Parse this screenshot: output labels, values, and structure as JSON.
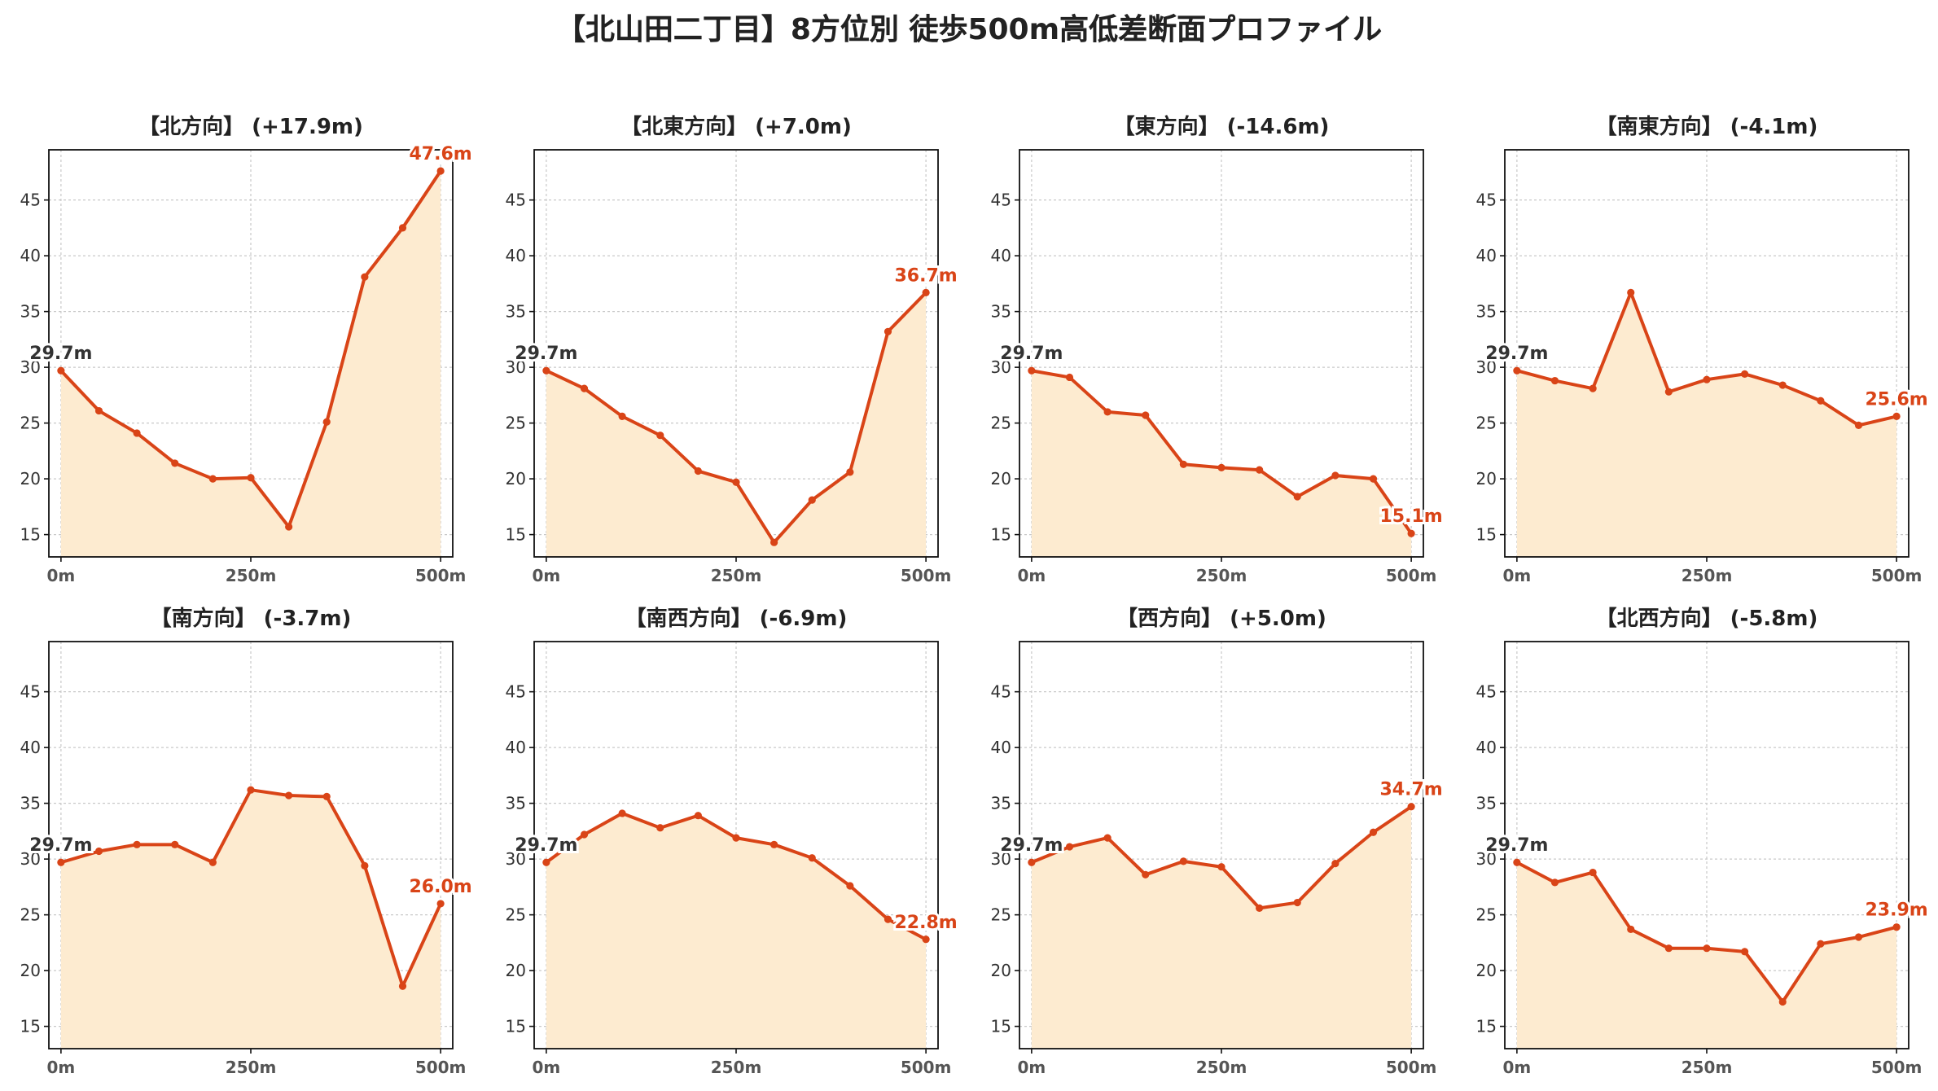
{
  "title": "【北山田二丁目】8方位別 徒歩500m高低差断面プロファイル",
  "colors": {
    "line": "#d94417",
    "fill": "#fdebd0",
    "start_label": "#333333",
    "end_label": "#d94417",
    "grid": "#c8c8c8"
  },
  "chart_data": [
    {
      "type": "area",
      "title": "【北方向】 (+17.9m)",
      "x": [
        0,
        50,
        100,
        150,
        200,
        250,
        300,
        350,
        400,
        450,
        500
      ],
      "values": [
        29.7,
        26.1,
        24.1,
        21.4,
        20.0,
        20.1,
        15.7,
        25.1,
        38.1,
        42.5,
        47.6
      ],
      "xticks": [
        "0m",
        "250m",
        "500m"
      ],
      "ylim": [
        13,
        49.5
      ],
      "yticks": [
        15,
        20,
        25,
        30,
        35,
        40,
        45
      ],
      "start_label": "29.7m",
      "end_label": "47.6m",
      "grid": true
    },
    {
      "type": "area",
      "title": "【北東方向】 (+7.0m)",
      "x": [
        0,
        50,
        100,
        150,
        200,
        250,
        300,
        350,
        400,
        450,
        500
      ],
      "values": [
        29.7,
        28.1,
        25.6,
        23.9,
        20.7,
        19.7,
        14.3,
        18.1,
        20.6,
        33.2,
        36.7
      ],
      "xticks": [
        "0m",
        "250m",
        "500m"
      ],
      "ylim": [
        13,
        49.5
      ],
      "yticks": [
        15,
        20,
        25,
        30,
        35,
        40,
        45
      ],
      "start_label": "29.7m",
      "end_label": "36.7m",
      "grid": true
    },
    {
      "type": "area",
      "title": "【東方向】 (-14.6m)",
      "x": [
        0,
        50,
        100,
        150,
        200,
        250,
        300,
        350,
        400,
        450,
        500
      ],
      "values": [
        29.7,
        29.1,
        26.0,
        25.7,
        21.3,
        21.0,
        20.8,
        18.4,
        20.3,
        20.0,
        15.1
      ],
      "xticks": [
        "0m",
        "250m",
        "500m"
      ],
      "ylim": [
        13,
        49.5
      ],
      "yticks": [
        15,
        20,
        25,
        30,
        35,
        40,
        45
      ],
      "start_label": "29.7m",
      "end_label": "15.1m",
      "grid": true
    },
    {
      "type": "area",
      "title": "【南東方向】 (-4.1m)",
      "x": [
        0,
        50,
        100,
        150,
        200,
        250,
        300,
        350,
        400,
        450,
        500
      ],
      "values": [
        29.7,
        28.8,
        28.1,
        36.7,
        27.8,
        28.9,
        29.4,
        28.4,
        27.0,
        24.8,
        25.6
      ],
      "xticks": [
        "0m",
        "250m",
        "500m"
      ],
      "ylim": [
        13,
        49.5
      ],
      "yticks": [
        15,
        20,
        25,
        30,
        35,
        40,
        45
      ],
      "start_label": "29.7m",
      "end_label": "25.6m",
      "grid": true
    },
    {
      "type": "area",
      "title": "【南方向】 (-3.7m)",
      "x": [
        0,
        50,
        100,
        150,
        200,
        250,
        300,
        350,
        400,
        450,
        500
      ],
      "values": [
        29.7,
        30.7,
        31.3,
        31.3,
        29.7,
        36.2,
        35.7,
        35.6,
        29.4,
        18.6,
        26.0
      ],
      "xticks": [
        "0m",
        "250m",
        "500m"
      ],
      "ylim": [
        13,
        49.5
      ],
      "yticks": [
        15,
        20,
        25,
        30,
        35,
        40,
        45
      ],
      "start_label": "29.7m",
      "end_label": "26.0m",
      "grid": true
    },
    {
      "type": "area",
      "title": "【南西方向】 (-6.9m)",
      "x": [
        0,
        50,
        100,
        150,
        200,
        250,
        300,
        350,
        400,
        450,
        500
      ],
      "values": [
        29.7,
        32.2,
        34.1,
        32.8,
        33.9,
        31.9,
        31.3,
        30.1,
        27.6,
        24.6,
        22.8
      ],
      "xticks": [
        "0m",
        "250m",
        "500m"
      ],
      "ylim": [
        13,
        49.5
      ],
      "yticks": [
        15,
        20,
        25,
        30,
        35,
        40,
        45
      ],
      "start_label": "29.7m",
      "end_label": "22.8m",
      "grid": true
    },
    {
      "type": "area",
      "title": "【西方向】 (+5.0m)",
      "x": [
        0,
        50,
        100,
        150,
        200,
        250,
        300,
        350,
        400,
        450,
        500
      ],
      "values": [
        29.7,
        31.1,
        31.9,
        28.6,
        29.8,
        29.3,
        25.6,
        26.1,
        29.6,
        32.4,
        34.7
      ],
      "xticks": [
        "0m",
        "250m",
        "500m"
      ],
      "ylim": [
        13,
        49.5
      ],
      "yticks": [
        15,
        20,
        25,
        30,
        35,
        40,
        45
      ],
      "start_label": "29.7m",
      "end_label": "34.7m",
      "grid": true
    },
    {
      "type": "area",
      "title": "【北西方向】 (-5.8m)",
      "x": [
        0,
        50,
        100,
        150,
        200,
        250,
        300,
        350,
        400,
        450,
        500
      ],
      "values": [
        29.7,
        27.9,
        28.8,
        23.7,
        22.0,
        22.0,
        21.7,
        17.2,
        22.4,
        23.0,
        23.9
      ],
      "xticks": [
        "0m",
        "250m",
        "500m"
      ],
      "ylim": [
        13,
        49.5
      ],
      "yticks": [
        15,
        20,
        25,
        30,
        35,
        40,
        45
      ],
      "start_label": "29.7m",
      "end_label": "23.9m",
      "grid": true
    }
  ]
}
